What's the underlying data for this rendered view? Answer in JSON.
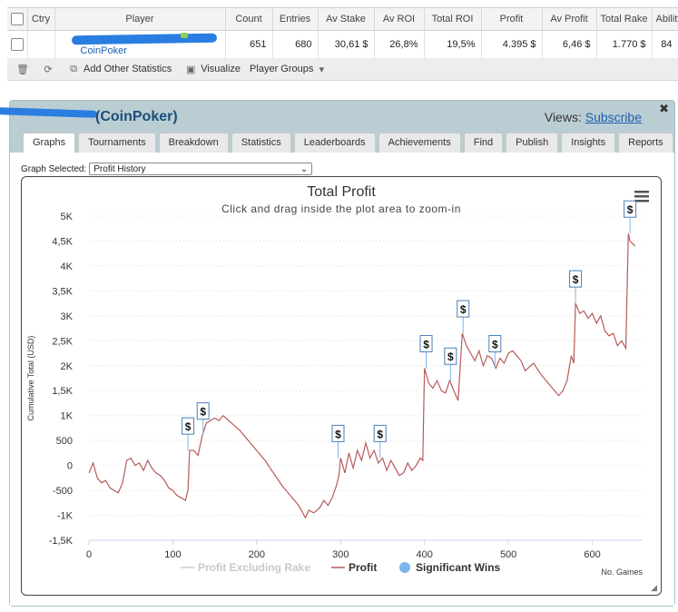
{
  "table": {
    "headers": [
      "",
      "Ctry",
      "Player",
      "Count",
      "Entries",
      "Av Stake",
      "Av ROI",
      "Total ROI",
      "Profit",
      "Av Profit",
      "Total Rake",
      "Ability"
    ],
    "row": {
      "player_site": "CoinPoker",
      "count": "651",
      "entries": "680",
      "av_stake": "30,61 $",
      "av_roi": "26,8%",
      "total_roi": "19,5%",
      "profit": "4.395 $",
      "av_profit": "6,46 $",
      "total_rake": "1.770 $",
      "ability": "84"
    }
  },
  "toolbar": {
    "add_other_statistics": "Add Other Statistics",
    "visualize": "Visualize",
    "player_groups": "Player Groups"
  },
  "panel": {
    "title": "(CoinPoker)",
    "views_label": "Views:",
    "subscribe": "Subscribe",
    "tabs": [
      "Graphs",
      "Tournaments",
      "Breakdown",
      "Statistics",
      "Leaderboards",
      "Achievements",
      "Find",
      "Publish",
      "Insights",
      "Reports"
    ],
    "graph_selected_label": "Graph Selected:",
    "graph_selected_value": "Profit History"
  },
  "colors": {
    "profit_line": "#b85a5a",
    "excluding_rake_line": "#cccccc",
    "significant_wins": "#7cb5ec",
    "panel_bg": "#b9cdd3"
  },
  "chart_data": {
    "type": "line",
    "title": "Total Profit",
    "subtitle": "Click and drag inside the plot area to zoom-in",
    "xlabel": "No. Games",
    "ylabel": "Cumulative Total (USD)",
    "xlim": [
      0,
      660
    ],
    "ylim": [
      -1500,
      5000
    ],
    "x_ticks": [
      0,
      100,
      200,
      300,
      400,
      500,
      600
    ],
    "x_tick_labels": [
      "0",
      "100",
      "200",
      "300",
      "400",
      "500",
      "600"
    ],
    "y_ticks": [
      -1500,
      -1000,
      -500,
      0,
      500,
      1000,
      1500,
      2000,
      2500,
      3000,
      3500,
      4000,
      4500,
      5000
    ],
    "y_tick_labels": [
      "-1,5K",
      "-1K",
      "-500",
      "0",
      "500",
      "1K",
      "1,5K",
      "2K",
      "2,5K",
      "3K",
      "3,5K",
      "4K",
      "4,5K",
      "5K"
    ],
    "legend": [
      "Profit Excluding Rake",
      "Profit",
      "Significant Wins"
    ],
    "legend_position": "bottom",
    "series": [
      {
        "name": "Profit",
        "x": [
          0,
          5,
          10,
          15,
          20,
          25,
          30,
          35,
          40,
          45,
          50,
          55,
          60,
          65,
          70,
          75,
          80,
          85,
          90,
          95,
          100,
          105,
          110,
          115,
          118,
          120,
          125,
          130,
          135,
          140,
          145,
          150,
          155,
          160,
          170,
          180,
          190,
          200,
          210,
          220,
          230,
          240,
          250,
          258,
          262,
          268,
          275,
          280,
          285,
          290,
          295,
          298,
          300,
          305,
          310,
          315,
          320,
          325,
          330,
          335,
          340,
          345,
          350,
          355,
          360,
          365,
          370,
          375,
          380,
          385,
          390,
          395,
          398,
          400,
          405,
          410,
          415,
          420,
          425,
          430,
          435,
          440,
          445,
          450,
          455,
          460,
          465,
          470,
          475,
          480,
          485,
          490,
          495,
          500,
          505,
          510,
          515,
          520,
          530,
          540,
          550,
          560,
          565,
          570,
          575,
          578,
          580,
          585,
          590,
          595,
          600,
          605,
          610,
          615,
          620,
          625,
          630,
          635,
          640,
          643,
          645,
          648,
          651
        ],
        "values": [
          -150,
          50,
          -250,
          -350,
          -300,
          -450,
          -500,
          -550,
          -350,
          100,
          150,
          0,
          50,
          -100,
          100,
          -50,
          -150,
          -200,
          -300,
          -450,
          -500,
          -600,
          -650,
          -700,
          -500,
          300,
          300,
          200,
          600,
          850,
          900,
          950,
          900,
          1000,
          850,
          700,
          500,
          300,
          100,
          -150,
          -400,
          -600,
          -800,
          -1050,
          -900,
          -950,
          -850,
          -700,
          -800,
          -650,
          -400,
          -200,
          150,
          -150,
          250,
          -50,
          300,
          100,
          450,
          150,
          300,
          50,
          150,
          -100,
          100,
          -50,
          -200,
          -150,
          50,
          -100,
          0,
          150,
          100,
          1950,
          1650,
          1550,
          1700,
          1500,
          1450,
          1700,
          1500,
          1300,
          2650,
          2400,
          2250,
          2100,
          2300,
          2000,
          2200,
          2150,
          1950,
          2150,
          2050,
          2250,
          2300,
          2200,
          2100,
          1900,
          2050,
          1800,
          1600,
          1400,
          1500,
          1700,
          2200,
          2050,
          3250,
          3050,
          3100,
          2950,
          3050,
          2850,
          3000,
          2700,
          2600,
          2650,
          2400,
          2500,
          2350,
          4650,
          4500,
          4450,
          4400
        ]
      }
    ],
    "significant_wins_x": [
      118,
      136,
      297,
      347,
      402,
      431,
      446,
      484,
      580,
      645
    ]
  }
}
